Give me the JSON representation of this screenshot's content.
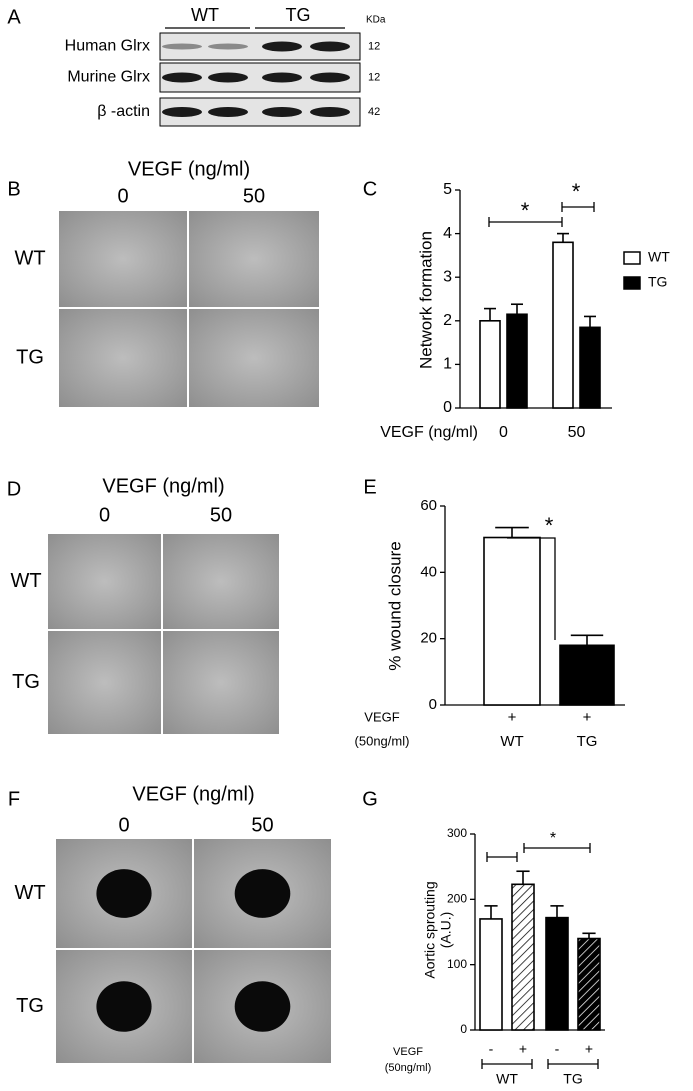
{
  "panels": {
    "a": {
      "letter": "A",
      "groups": [
        "WT",
        "TG"
      ],
      "unit": "KDa",
      "rows": [
        {
          "label": "Human Glrx",
          "size": "12"
        },
        {
          "label": "Murine Glrx",
          "size": "12"
        },
        {
          "label": "β -actin",
          "size": "42"
        }
      ]
    },
    "b": {
      "letter": "B",
      "title": "VEGF (ng/ml)",
      "columns": [
        "0",
        "50"
      ],
      "rows": [
        "WT",
        "TG"
      ]
    },
    "d": {
      "letter": "D",
      "title": "VEGF (ng/ml)",
      "columns": [
        "0",
        "50"
      ],
      "rows": [
        "WT",
        "TG"
      ]
    },
    "f": {
      "letter": "F",
      "title": "VEGF (ng/ml)",
      "columns": [
        "0",
        "50"
      ],
      "rows": [
        "WT",
        "TG"
      ]
    }
  },
  "chart_data": [
    {
      "type": "bar",
      "panel": "C",
      "ylabel": "Network formation",
      "xlabel": "VEGF (ng/ml)",
      "categories": [
        "0",
        "50"
      ],
      "series": [
        {
          "name": "WT",
          "color": "#ffffff",
          "values": [
            2.0,
            3.8
          ],
          "errors": [
            0.28,
            0.2
          ]
        },
        {
          "name": "TG",
          "color": "#000000",
          "values": [
            2.15,
            1.85
          ],
          "errors": [
            0.23,
            0.25
          ]
        }
      ],
      "ylim": [
        0,
        5
      ],
      "yticks": [
        0,
        1,
        2,
        3,
        4,
        5
      ],
      "legend": "right",
      "annotations": [
        "*",
        "*"
      ]
    },
    {
      "type": "bar",
      "panel": "E",
      "ylabel": "% wound closure",
      "treatment_label": [
        "VEGF",
        "(50ng/ml)"
      ],
      "treatment": [
        "+",
        "+"
      ],
      "categories": [
        "WT",
        "TG"
      ],
      "values": [
        50.5,
        18
      ],
      "errors": [
        3,
        3
      ],
      "colors": [
        "#ffffff",
        "#000000"
      ],
      "ylim": [
        0,
        60
      ],
      "yticks": [
        0,
        20,
        40,
        60
      ],
      "annotations": [
        "*"
      ]
    },
    {
      "type": "bar",
      "panel": "G",
      "ylabel": [
        "Aortic sprouting",
        "(A.U.)"
      ],
      "treatment_label": [
        "VEGF",
        "(50ng/ml)"
      ],
      "categories": [
        "-",
        "+",
        "-",
        "+"
      ],
      "groups": [
        "WT",
        "TG"
      ],
      "values": [
        170,
        223,
        172,
        140
      ],
      "errors": [
        20,
        20,
        18,
        8
      ],
      "colors": [
        "#ffffff",
        "#ffffff",
        "#000000",
        "#000000"
      ],
      "hatch": [
        false,
        true,
        false,
        true
      ],
      "ylim": [
        0,
        300
      ],
      "yticks": [
        0,
        100,
        200,
        300
      ],
      "annotations": [
        "*"
      ]
    }
  ]
}
